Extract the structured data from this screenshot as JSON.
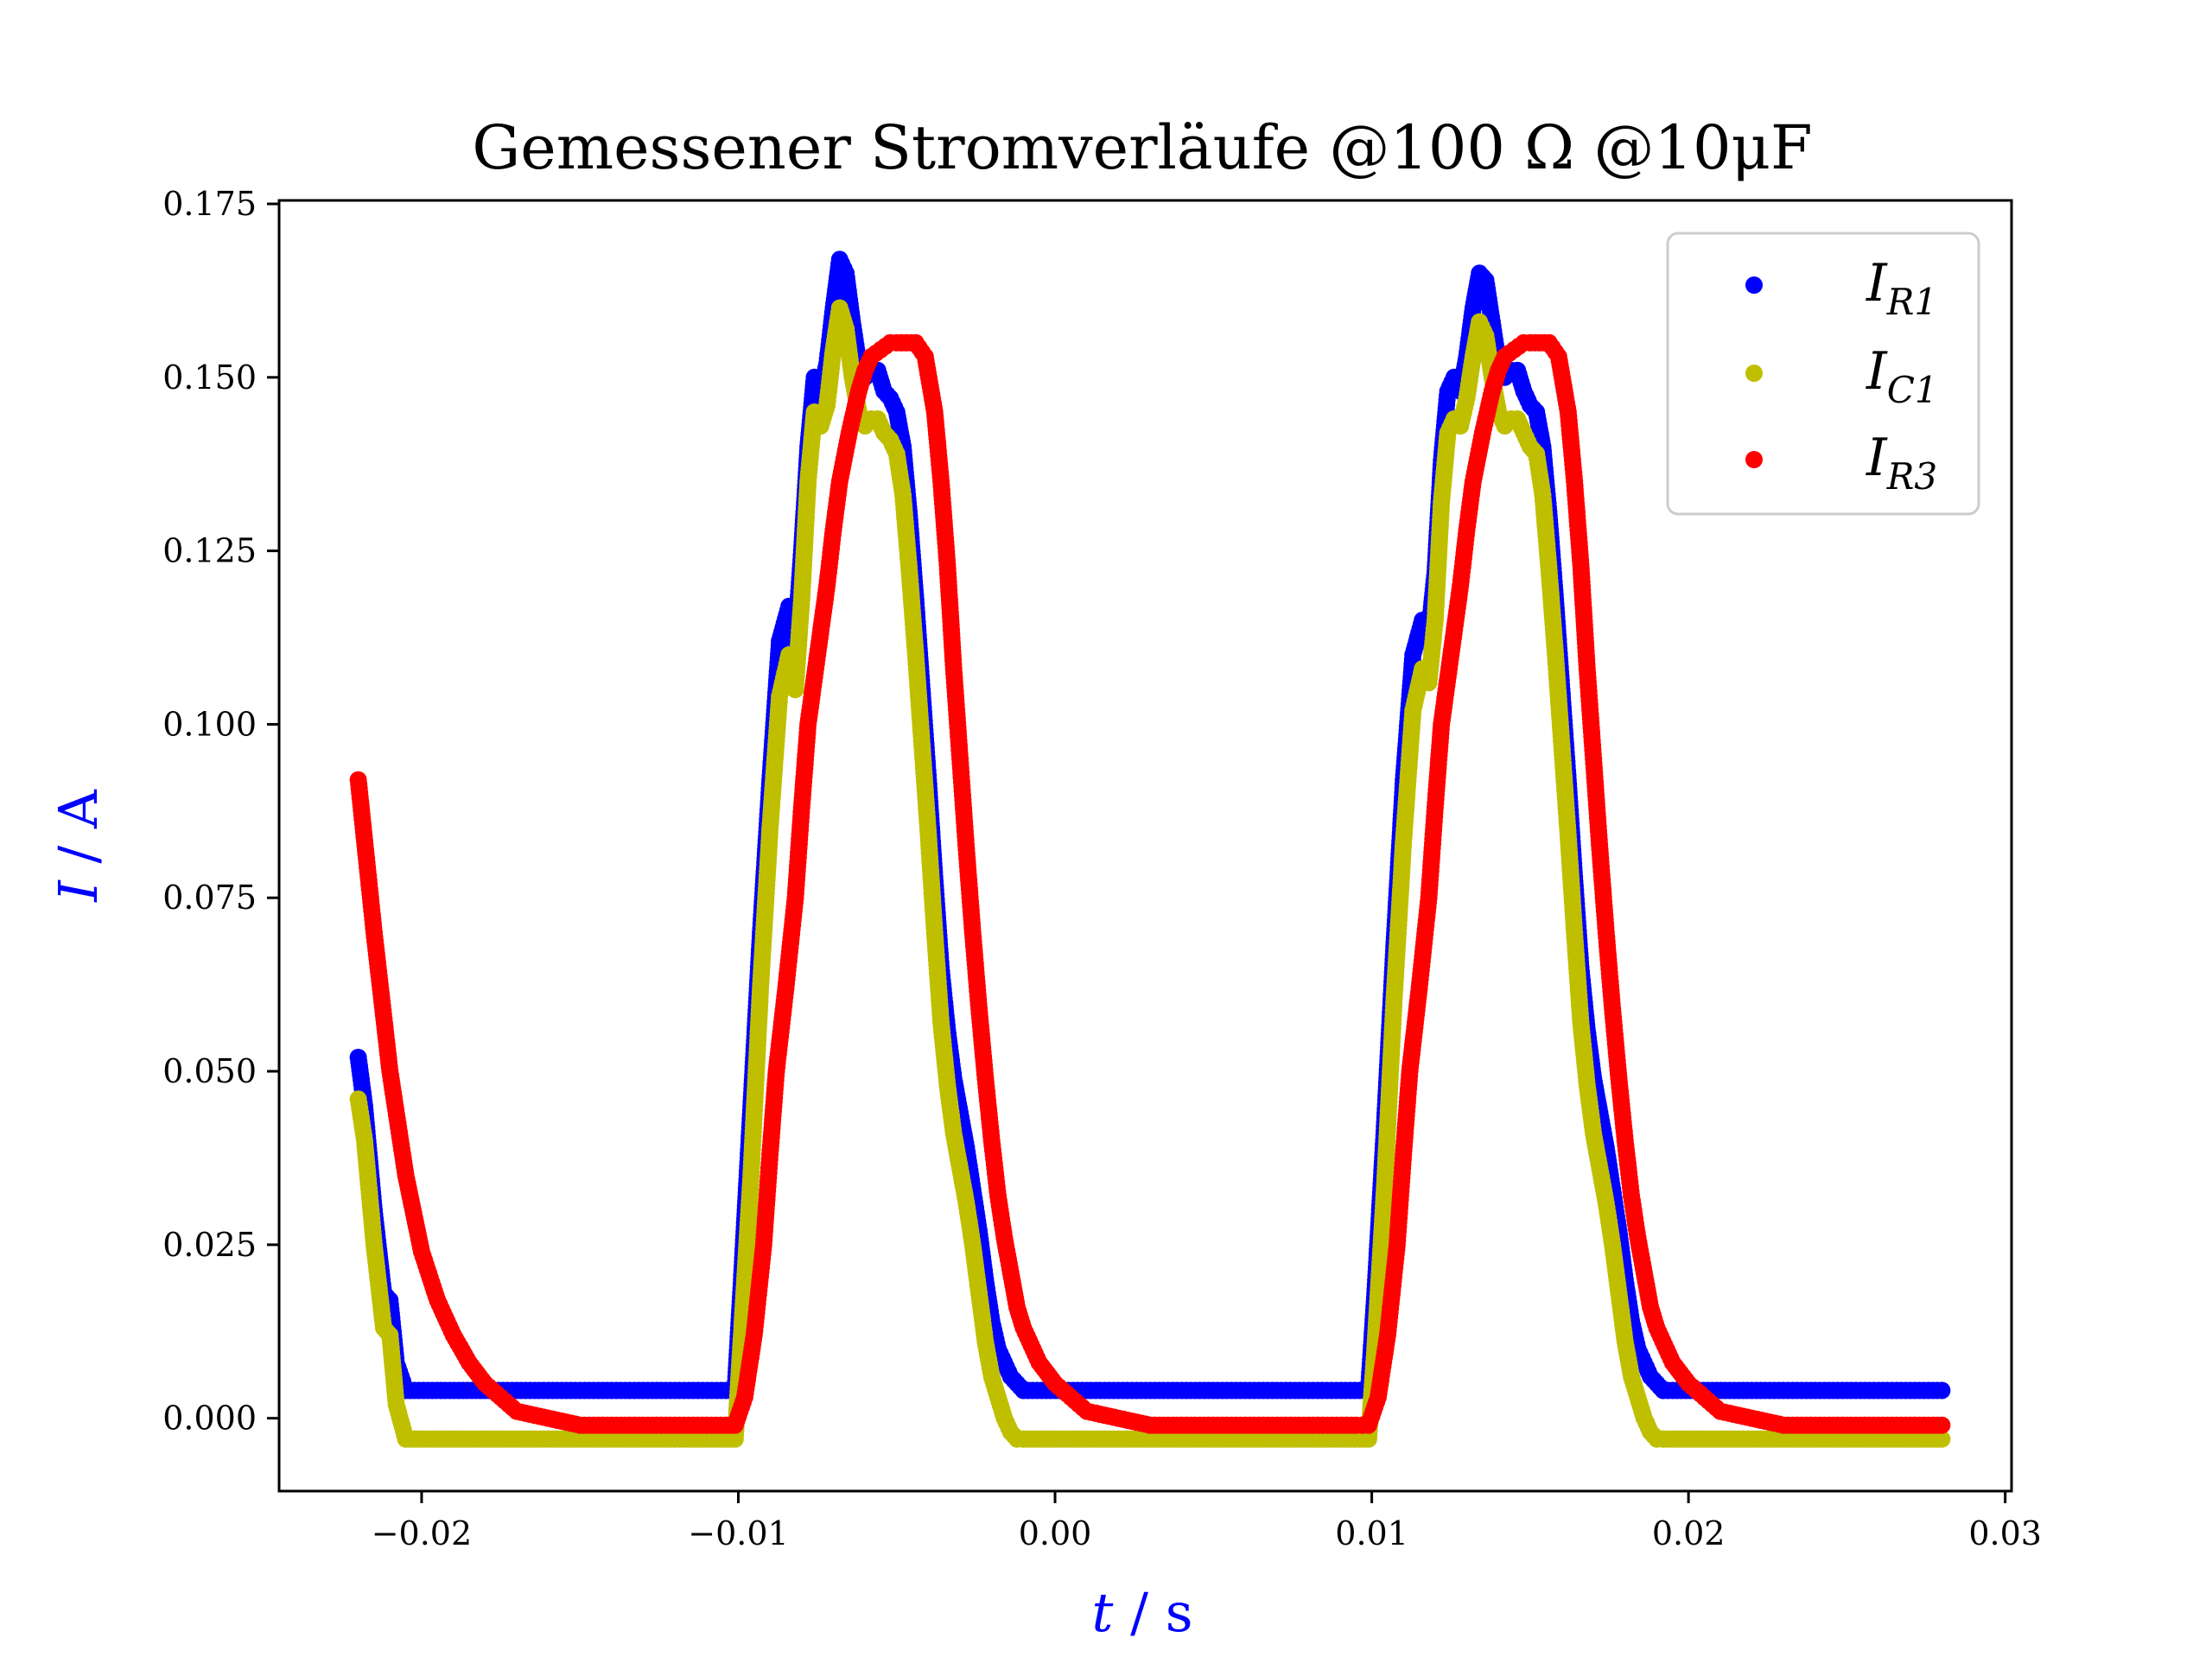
{
  "chart_data": {
    "type": "scatter",
    "title": "Gemessener Stromverläufe @100 Ω @10μF",
    "xlabel": {
      "symbol": "t",
      "unit": " / s",
      "color": "#0000ff"
    },
    "ylabel": {
      "symbol": "I",
      "unit": " / A",
      "color": "#0000ff"
    },
    "xlim": [
      -0.0245,
      0.0302
    ],
    "ylim": [
      -0.0105,
      0.1755
    ],
    "x_ticks": [
      -0.02,
      -0.01,
      0.0,
      0.01,
      0.02,
      0.03
    ],
    "x_tick_labels": [
      "−0.02",
      "−0.01",
      "0.00",
      "0.01",
      "0.02",
      "0.03"
    ],
    "y_ticks": [
      0.0,
      0.025,
      0.05,
      0.075,
      0.1,
      0.125,
      0.15,
      0.175
    ],
    "y_tick_labels": [
      "0.000",
      "0.025",
      "0.050",
      "0.075",
      "0.100",
      "0.125",
      "0.150",
      "0.175"
    ],
    "grid": false,
    "legend_position": "top-right",
    "series": [
      {
        "name": "I_R1",
        "label_main": "I",
        "label_sub": "R1",
        "color": "#0000ff",
        "x": [
          -0.022,
          -0.0218,
          -0.0215,
          -0.0212,
          -0.021,
          -0.0208,
          -0.0205,
          -0.018,
          -0.015,
          -0.012,
          -0.0101,
          -0.0099,
          -0.0096,
          -0.0093,
          -0.009,
          -0.0087,
          -0.0084,
          -0.0082,
          -0.008,
          -0.0078,
          -0.0076,
          -0.0074,
          -0.0072,
          -0.007,
          -0.0068,
          -0.0066,
          -0.0064,
          -0.0062,
          -0.006,
          -0.0058,
          -0.0056,
          -0.0054,
          -0.0052,
          -0.005,
          -0.0048,
          -0.0046,
          -0.0044,
          -0.0042,
          -0.004,
          -0.0038,
          -0.0036,
          -0.0034,
          -0.0032,
          -0.003,
          -0.0028,
          -0.0026,
          -0.0024,
          -0.0022,
          -0.002,
          -0.0018,
          -0.0016,
          -0.0014,
          -0.0012,
          -0.001,
          0.002,
          0.005,
          0.008,
          0.0099,
          0.0101,
          0.0104,
          0.0107,
          0.011,
          0.0113,
          0.0116,
          0.0118,
          0.012,
          0.0122,
          0.0124,
          0.0126,
          0.0128,
          0.013,
          0.0132,
          0.0134,
          0.0136,
          0.0138,
          0.014,
          0.0142,
          0.0144,
          0.0146,
          0.0148,
          0.015,
          0.0152,
          0.0154,
          0.0156,
          0.0158,
          0.016,
          0.0162,
          0.0164,
          0.0166,
          0.0168,
          0.017,
          0.0172,
          0.0174,
          0.0176,
          0.0178,
          0.018,
          0.0182,
          0.0184,
          0.0186,
          0.0188,
          0.019,
          0.0192,
          0.0195,
          0.022,
          0.025,
          0.028
        ],
        "y": [
          0.052,
          0.045,
          0.03,
          0.018,
          0.017,
          0.008,
          0.004,
          0.004,
          0.004,
          0.004,
          0.004,
          0.02,
          0.045,
          0.07,
          0.092,
          0.112,
          0.117,
          0.112,
          0.125,
          0.14,
          0.15,
          0.148,
          0.152,
          0.16,
          0.167,
          0.165,
          0.158,
          0.152,
          0.15,
          0.151,
          0.151,
          0.148,
          0.147,
          0.145,
          0.14,
          0.13,
          0.118,
          0.105,
          0.092,
          0.078,
          0.065,
          0.056,
          0.049,
          0.044,
          0.039,
          0.033,
          0.027,
          0.02,
          0.014,
          0.01,
          0.008,
          0.006,
          0.005,
          0.004,
          0.004,
          0.004,
          0.004,
          0.004,
          0.018,
          0.042,
          0.068,
          0.092,
          0.11,
          0.115,
          0.113,
          0.122,
          0.138,
          0.148,
          0.15,
          0.148,
          0.153,
          0.16,
          0.165,
          0.164,
          0.158,
          0.152,
          0.15,
          0.151,
          0.151,
          0.148,
          0.146,
          0.145,
          0.14,
          0.13,
          0.118,
          0.105,
          0.092,
          0.078,
          0.065,
          0.056,
          0.049,
          0.044,
          0.039,
          0.033,
          0.027,
          0.02,
          0.014,
          0.01,
          0.008,
          0.006,
          0.005,
          0.004,
          0.004,
          0.004,
          0.004,
          0.004
        ]
      },
      {
        "name": "I_C1",
        "label_main": "I",
        "label_sub": "C1",
        "color": "#bfbf00",
        "x": [
          -0.022,
          -0.0218,
          -0.0215,
          -0.0212,
          -0.021,
          -0.0208,
          -0.0205,
          -0.018,
          -0.015,
          -0.012,
          -0.0101,
          -0.0099,
          -0.0096,
          -0.0093,
          -0.009,
          -0.0087,
          -0.0084,
          -0.0082,
          -0.008,
          -0.0078,
          -0.0076,
          -0.0074,
          -0.0072,
          -0.007,
          -0.0068,
          -0.0066,
          -0.0064,
          -0.0062,
          -0.006,
          -0.0058,
          -0.0056,
          -0.0054,
          -0.0052,
          -0.005,
          -0.0048,
          -0.0046,
          -0.0044,
          -0.0042,
          -0.004,
          -0.0038,
          -0.0036,
          -0.0034,
          -0.0032,
          -0.003,
          -0.0028,
          -0.0026,
          -0.0024,
          -0.0022,
          -0.002,
          -0.0018,
          -0.0016,
          -0.0014,
          -0.0012,
          -0.001,
          0.002,
          0.005,
          0.008,
          0.0099,
          0.0101,
          0.0104,
          0.0107,
          0.011,
          0.0113,
          0.0116,
          0.0118,
          0.012,
          0.0122,
          0.0124,
          0.0126,
          0.0128,
          0.013,
          0.0132,
          0.0134,
          0.0136,
          0.0138,
          0.014,
          0.0142,
          0.0144,
          0.0146,
          0.0148,
          0.015,
          0.0152,
          0.0154,
          0.0156,
          0.0158,
          0.016,
          0.0162,
          0.0164,
          0.0166,
          0.0168,
          0.017,
          0.0172,
          0.0174,
          0.0176,
          0.0178,
          0.018,
          0.0182,
          0.0184,
          0.0186,
          0.0188,
          0.019,
          0.0192,
          0.0195,
          0.022,
          0.025,
          0.028
        ],
        "y": [
          0.046,
          0.04,
          0.025,
          0.013,
          0.012,
          0.002,
          -0.003,
          -0.003,
          -0.003,
          -0.003,
          -0.003,
          0.012,
          0.035,
          0.062,
          0.085,
          0.104,
          0.11,
          0.105,
          0.118,
          0.135,
          0.145,
          0.143,
          0.146,
          0.154,
          0.16,
          0.157,
          0.15,
          0.145,
          0.143,
          0.144,
          0.144,
          0.142,
          0.141,
          0.139,
          0.133,
          0.122,
          0.11,
          0.097,
          0.084,
          0.07,
          0.057,
          0.048,
          0.041,
          0.036,
          0.031,
          0.025,
          0.018,
          0.011,
          0.006,
          0.003,
          0.0,
          -0.002,
          -0.003,
          -0.003,
          -0.003,
          -0.003,
          -0.003,
          -0.003,
          0.01,
          0.033,
          0.06,
          0.083,
          0.102,
          0.108,
          0.106,
          0.115,
          0.132,
          0.142,
          0.144,
          0.143,
          0.147,
          0.153,
          0.158,
          0.156,
          0.15,
          0.145,
          0.143,
          0.144,
          0.144,
          0.142,
          0.14,
          0.139,
          0.133,
          0.122,
          0.11,
          0.097,
          0.084,
          0.07,
          0.057,
          0.048,
          0.041,
          0.036,
          0.031,
          0.025,
          0.018,
          0.011,
          0.006,
          0.003,
          0.0,
          -0.002,
          -0.003,
          -0.003,
          -0.003,
          -0.003,
          -0.003,
          -0.003
        ]
      },
      {
        "name": "I_R3",
        "label_main": "I",
        "label_sub": "R3",
        "color": "#ff0000",
        "x": [
          -0.022,
          -0.0215,
          -0.021,
          -0.0205,
          -0.02,
          -0.0195,
          -0.019,
          -0.0185,
          -0.018,
          -0.0175,
          -0.017,
          -0.016,
          -0.015,
          -0.013,
          -0.011,
          -0.0101,
          -0.0098,
          -0.0095,
          -0.0092,
          -0.009,
          -0.0088,
          -0.0085,
          -0.0082,
          -0.008,
          -0.0078,
          -0.0075,
          -0.0072,
          -0.007,
          -0.0068,
          -0.0065,
          -0.0062,
          -0.006,
          -0.0058,
          -0.0055,
          -0.0052,
          -0.005,
          -0.0047,
          -0.0044,
          -0.0041,
          -0.0038,
          -0.0036,
          -0.0034,
          -0.0032,
          -0.003,
          -0.0028,
          -0.0026,
          -0.0024,
          -0.0022,
          -0.002,
          -0.0018,
          -0.0016,
          -0.0014,
          -0.0012,
          -0.001,
          -0.0005,
          0.0,
          0.0005,
          0.001,
          0.002,
          0.003,
          0.004,
          0.006,
          0.008,
          0.0095,
          0.0099,
          0.0102,
          0.0105,
          0.0108,
          0.011,
          0.0112,
          0.0115,
          0.0118,
          0.012,
          0.0122,
          0.0125,
          0.0128,
          0.013,
          0.0132,
          0.0135,
          0.0138,
          0.014,
          0.0142,
          0.0145,
          0.0148,
          0.015,
          0.0153,
          0.0156,
          0.0159,
          0.0162,
          0.0164,
          0.0166,
          0.0168,
          0.017,
          0.0172,
          0.0174,
          0.0176,
          0.0178,
          0.018,
          0.0182,
          0.0184,
          0.0186,
          0.0188,
          0.019,
          0.0195,
          0.02,
          0.0205,
          0.021,
          0.022,
          0.023,
          0.024,
          0.026,
          0.028
        ],
        "y": [
          0.092,
          0.07,
          0.05,
          0.035,
          0.024,
          0.017,
          0.012,
          0.008,
          0.005,
          0.003,
          0.001,
          0.0,
          -0.001,
          -0.001,
          -0.001,
          -0.001,
          0.003,
          0.012,
          0.025,
          0.038,
          0.05,
          0.062,
          0.075,
          0.088,
          0.1,
          0.11,
          0.12,
          0.128,
          0.135,
          0.142,
          0.148,
          0.151,
          0.153,
          0.154,
          0.155,
          0.155,
          0.155,
          0.155,
          0.153,
          0.145,
          0.135,
          0.123,
          0.108,
          0.095,
          0.082,
          0.07,
          0.059,
          0.049,
          0.04,
          0.032,
          0.026,
          0.021,
          0.016,
          0.013,
          0.008,
          0.005,
          0.003,
          0.001,
          0.0,
          -0.001,
          -0.001,
          -0.001,
          -0.001,
          -0.001,
          -0.001,
          0.003,
          0.012,
          0.025,
          0.038,
          0.05,
          0.062,
          0.075,
          0.088,
          0.1,
          0.11,
          0.12,
          0.128,
          0.135,
          0.142,
          0.148,
          0.151,
          0.153,
          0.154,
          0.155,
          0.155,
          0.155,
          0.155,
          0.153,
          0.145,
          0.135,
          0.123,
          0.108,
          0.095,
          0.082,
          0.07,
          0.059,
          0.049,
          0.04,
          0.032,
          0.026,
          0.021,
          0.016,
          0.013,
          0.008,
          0.005,
          0.003,
          0.001,
          0.0,
          -0.001,
          -0.001,
          -0.001,
          -0.001
        ]
      }
    ]
  }
}
